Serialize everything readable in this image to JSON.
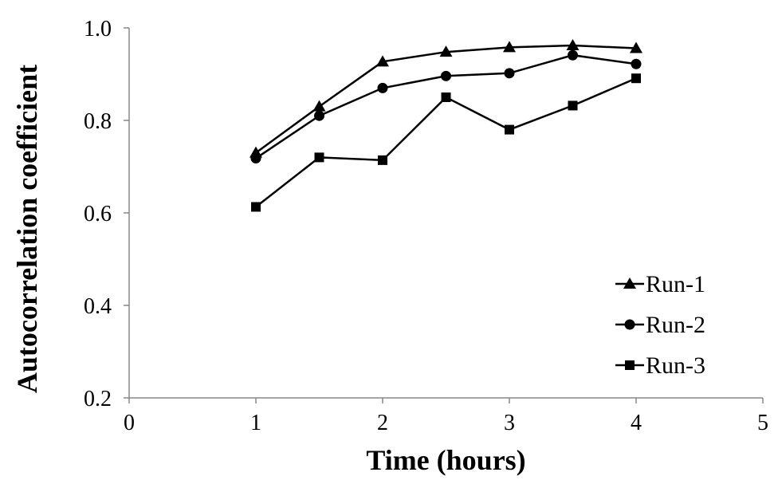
{
  "chart_data": {
    "type": "line",
    "title": "",
    "xlabel": "Time (hours)",
    "ylabel": "Autocorrelation coefficient",
    "xlim": [
      0,
      5
    ],
    "ylim": [
      0.2,
      1.0
    ],
    "x_ticks": [
      "0",
      "1",
      "2",
      "3",
      "4",
      "5"
    ],
    "y_ticks": [
      "0.2",
      "0.4",
      "0.6",
      "0.8",
      "1.0"
    ],
    "grid": false,
    "legend_position": "bottom-right",
    "x": [
      1,
      1.5,
      2,
      2.5,
      3,
      3.5,
      4
    ],
    "series": [
      {
        "name": "Run-1",
        "marker": "triangle",
        "color": "#000000",
        "values": [
          0.73,
          0.83,
          0.927,
          0.948,
          0.958,
          0.962,
          0.956
        ]
      },
      {
        "name": "Run-2",
        "marker": "circle",
        "color": "#000000",
        "values": [
          0.718,
          0.81,
          0.87,
          0.896,
          0.902,
          0.941,
          0.922
        ]
      },
      {
        "name": "Run-3",
        "marker": "square",
        "color": "#000000",
        "values": [
          0.613,
          0.72,
          0.714,
          0.85,
          0.78,
          0.832,
          0.891
        ]
      }
    ]
  }
}
